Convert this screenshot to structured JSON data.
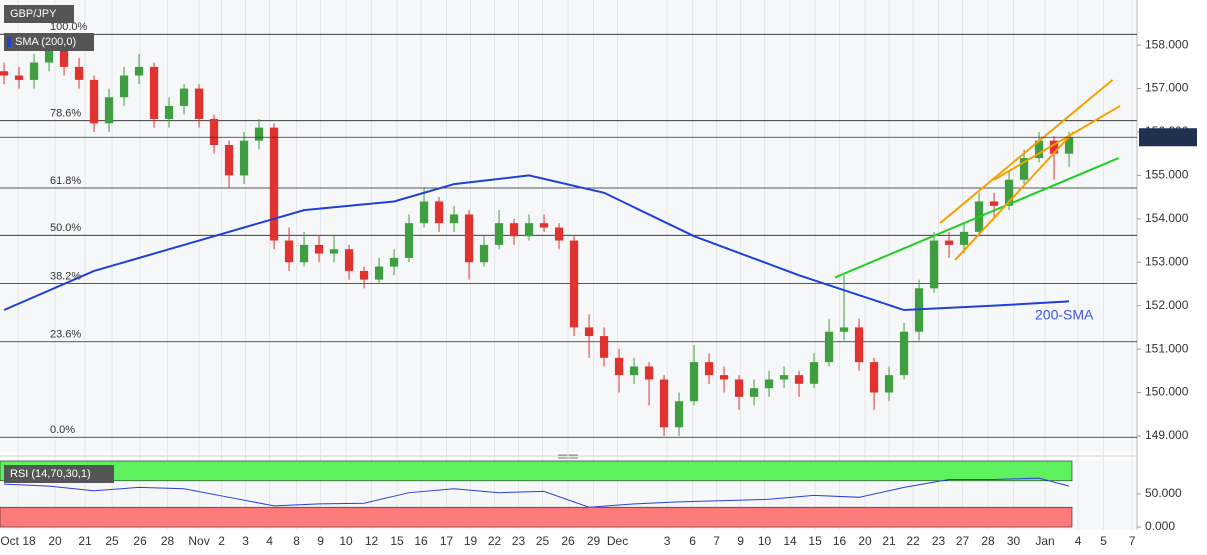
{
  "chart_data": {
    "type": "candlestick",
    "title": "GBP/JPY",
    "indicator": "SMA (200,0)",
    "up_color": "#3f9e3f",
    "down_color": "#e0332f",
    "candles": [
      [
        157.4,
        157.6,
        157.1,
        157.3
      ],
      [
        157.3,
        157.5,
        157.0,
        157.2
      ],
      [
        157.2,
        157.8,
        157.0,
        157.6
      ],
      [
        157.6,
        158.1,
        157.4,
        157.9
      ],
      [
        157.9,
        158.0,
        157.3,
        157.5
      ],
      [
        157.5,
        157.7,
        157.0,
        157.2
      ],
      [
        157.2,
        157.3,
        156.0,
        156.2
      ],
      [
        156.2,
        157.0,
        156.0,
        156.8
      ],
      [
        156.8,
        157.5,
        156.6,
        157.3
      ],
      [
        157.3,
        157.8,
        157.1,
        157.5
      ],
      [
        157.5,
        157.6,
        156.1,
        156.3
      ],
      [
        156.3,
        156.8,
        156.1,
        156.6
      ],
      [
        156.6,
        157.1,
        156.4,
        157.0
      ],
      [
        157.0,
        157.1,
        156.1,
        156.3
      ],
      [
        156.3,
        156.4,
        155.5,
        155.7
      ],
      [
        155.7,
        155.8,
        154.7,
        155.0
      ],
      [
        155.0,
        156.0,
        154.8,
        155.8
      ],
      [
        155.8,
        156.3,
        155.6,
        156.1
      ],
      [
        156.1,
        156.2,
        153.3,
        153.5
      ],
      [
        153.5,
        153.8,
        152.8,
        153.0
      ],
      [
        153.0,
        153.7,
        152.9,
        153.4
      ],
      [
        153.4,
        153.6,
        153.0,
        153.2
      ],
      [
        153.2,
        153.6,
        153.0,
        153.3
      ],
      [
        153.3,
        153.4,
        152.6,
        152.8
      ],
      [
        152.8,
        152.9,
        152.4,
        152.6
      ],
      [
        152.6,
        153.1,
        152.5,
        152.9
      ],
      [
        152.9,
        153.3,
        152.7,
        153.1
      ],
      [
        153.1,
        154.1,
        153.0,
        153.9
      ],
      [
        153.9,
        154.7,
        153.8,
        154.4
      ],
      [
        154.4,
        154.5,
        153.7,
        153.9
      ],
      [
        153.9,
        154.3,
        153.7,
        154.1
      ],
      [
        154.1,
        154.2,
        152.6,
        153.0
      ],
      [
        153.0,
        153.6,
        152.9,
        153.4
      ],
      [
        153.4,
        154.2,
        153.3,
        153.9
      ],
      [
        153.9,
        154.0,
        153.4,
        153.6
      ],
      [
        153.6,
        154.1,
        153.5,
        153.9
      ],
      [
        153.9,
        154.1,
        153.7,
        153.8
      ],
      [
        153.8,
        153.9,
        153.3,
        153.5
      ],
      [
        153.5,
        153.6,
        151.3,
        151.5
      ],
      [
        151.5,
        151.8,
        150.8,
        151.3
      ],
      [
        151.3,
        151.5,
        150.6,
        150.8
      ],
      [
        150.8,
        151.0,
        150.0,
        150.4
      ],
      [
        150.4,
        150.8,
        150.2,
        150.6
      ],
      [
        150.6,
        150.7,
        149.7,
        150.3
      ],
      [
        150.3,
        150.4,
        149.0,
        149.2
      ],
      [
        149.2,
        150.0,
        149.0,
        149.8
      ],
      [
        149.8,
        151.1,
        149.7,
        150.7
      ],
      [
        150.7,
        150.9,
        150.2,
        150.4
      ],
      [
        150.4,
        150.6,
        150.0,
        150.3
      ],
      [
        150.3,
        150.4,
        149.6,
        149.9
      ],
      [
        149.9,
        150.3,
        149.7,
        150.1
      ],
      [
        150.1,
        150.5,
        149.9,
        150.3
      ],
      [
        150.3,
        150.6,
        150.1,
        150.4
      ],
      [
        150.4,
        150.5,
        149.9,
        150.2
      ],
      [
        150.2,
        150.9,
        150.1,
        150.7
      ],
      [
        150.7,
        151.7,
        150.6,
        151.4
      ],
      [
        151.4,
        152.7,
        151.2,
        151.5
      ],
      [
        151.5,
        151.7,
        150.5,
        150.7
      ],
      [
        150.7,
        150.8,
        149.6,
        150.0
      ],
      [
        150.0,
        150.6,
        149.8,
        150.4
      ],
      [
        150.4,
        151.6,
        150.3,
        151.4
      ],
      [
        151.4,
        152.6,
        151.2,
        152.4
      ],
      [
        152.4,
        153.7,
        152.3,
        153.5
      ],
      [
        153.5,
        153.7,
        153.1,
        153.4
      ],
      [
        153.4,
        153.9,
        153.2,
        153.7
      ],
      [
        153.7,
        154.6,
        153.6,
        154.4
      ],
      [
        154.4,
        154.6,
        154.0,
        154.3
      ],
      [
        154.3,
        155.1,
        154.2,
        154.9
      ],
      [
        154.9,
        155.6,
        154.8,
        155.4
      ],
      [
        155.4,
        156.0,
        155.3,
        155.8
      ],
      [
        155.8,
        155.9,
        154.9,
        155.5
      ],
      [
        155.5,
        156.0,
        155.2,
        155.879
      ]
    ],
    "xlim": [
      -0.27,
      75.53
    ],
    "xticks": [
      {
        "value": 0.93,
        "label": "Oct 18"
      },
      {
        "value": 3.4,
        "label": "20"
      },
      {
        "value": 5.4,
        "label": "21"
      },
      {
        "value": 7.2,
        "label": "25"
      },
      {
        "value": 9.07,
        "label": "26"
      },
      {
        "value": 10.9,
        "label": "28"
      },
      {
        "value": 13.0,
        "label": "Nov"
      },
      {
        "value": 14.5,
        "label": "2"
      },
      {
        "value": 16.1,
        "label": "3"
      },
      {
        "value": 17.7,
        "label": "4"
      },
      {
        "value": 19.5,
        "label": "8"
      },
      {
        "value": 21.1,
        "label": "9"
      },
      {
        "value": 22.8,
        "label": "10"
      },
      {
        "value": 24.5,
        "label": "12"
      },
      {
        "value": 26.2,
        "label": "15"
      },
      {
        "value": 27.8,
        "label": "16"
      },
      {
        "value": 29.5,
        "label": "17"
      },
      {
        "value": 31.1,
        "label": "19"
      },
      {
        "value": 32.7,
        "label": "22"
      },
      {
        "value": 34.3,
        "label": "23"
      },
      {
        "value": 35.9,
        "label": "25"
      },
      {
        "value": 37.6,
        "label": "26"
      },
      {
        "value": 39.3,
        "label": "29"
      },
      {
        "value": 40.9,
        "label": "Dec"
      },
      {
        "value": 44.2,
        "label": "3"
      },
      {
        "value": 45.9,
        "label": "6"
      },
      {
        "value": 47.5,
        "label": "7"
      },
      {
        "value": 49.1,
        "label": "9"
      },
      {
        "value": 50.7,
        "label": "10"
      },
      {
        "value": 52.4,
        "label": "14"
      },
      {
        "value": 54.07,
        "label": "15"
      },
      {
        "value": 55.7,
        "label": "16"
      },
      {
        "value": 57.4,
        "label": "20"
      },
      {
        "value": 59.0,
        "label": "21"
      },
      {
        "value": 60.6,
        "label": "22"
      },
      {
        "value": 62.3,
        "label": "23"
      },
      {
        "value": 63.9,
        "label": "27"
      },
      {
        "value": 65.6,
        "label": "28"
      },
      {
        "value": 67.3,
        "label": "30"
      },
      {
        "value": 69.4,
        "label": "Jan"
      },
      {
        "value": 71.6,
        "label": "4"
      },
      {
        "value": 73.3,
        "label": "5"
      },
      {
        "value": 75.2,
        "label": "7"
      }
    ],
    "ylim": [
      148.63,
      159.04
    ],
    "yticks": [
      {
        "value": 149,
        "label": "149.000"
      },
      {
        "value": 150,
        "label": "150.000"
      },
      {
        "value": 151,
        "label": "151.000"
      },
      {
        "value": 152,
        "label": "152.000"
      },
      {
        "value": 153,
        "label": "153.000"
      },
      {
        "value": 154,
        "label": "154.000"
      },
      {
        "value": 155,
        "label": "155.000"
      },
      {
        "value": 156,
        "label": "156.000"
      },
      {
        "value": 157,
        "label": "157.000"
      },
      {
        "value": 158,
        "label": "158.000"
      }
    ],
    "last_price": 155.879,
    "sma": {
      "name": "200-SMA",
      "color": "#1f3fd6",
      "x": [
        0,
        6,
        13,
        20,
        26,
        30,
        35,
        40,
        46,
        53,
        60,
        66,
        71
      ],
      "values": [
        151.9,
        152.8,
        153.5,
        154.2,
        154.4,
        154.8,
        155.0,
        154.6,
        153.6,
        152.7,
        151.9,
        152.0,
        152.1
      ]
    },
    "fib": [
      {
        "label": "100.0%",
        "value": 158.25
      },
      {
        "label": "78.6%",
        "value": 156.26
      },
      {
        "label": "61.8%",
        "value": 154.71
      },
      {
        "label": "50.0%",
        "value": 153.62
      },
      {
        "label": "38.2%",
        "value": 152.51
      },
      {
        "label": "23.6%",
        "value": 151.17
      },
      {
        "label": "0.0%",
        "value": 148.97
      }
    ],
    "trendlines": [
      {
        "color": "#22cc22",
        "x": [
          55.4,
          74.3
        ],
        "values": [
          152.65,
          155.4
        ]
      },
      {
        "color": "#f5a000",
        "x": [
          62.4,
          73.9
        ],
        "values": [
          153.9,
          157.2
        ]
      },
      {
        "color": "#f5a000",
        "x": [
          66,
          74.4
        ],
        "values": [
          154.9,
          156.6
        ]
      },
      {
        "color": "#f5a000",
        "x": [
          63.4,
          71.3
        ],
        "values": [
          153.05,
          156.0
        ]
      }
    ],
    "rsi": {
      "label": "RSI (14,70,30,1)",
      "color": "#2b3fd6",
      "ylim": [
        -4.5,
        101.5
      ],
      "yticks": [
        {
          "value": 50,
          "label": "50.000"
        },
        {
          "value": 0,
          "label": "0.000"
        }
      ],
      "overbought": [
        70,
        100
      ],
      "oversold": [
        0,
        30
      ],
      "x": [
        0,
        3,
        6,
        9,
        12,
        15,
        18,
        21,
        24,
        27,
        30,
        33,
        36,
        39,
        42,
        45,
        48,
        51,
        54,
        57,
        60,
        63,
        66,
        69,
        71
      ],
      "values": [
        65,
        62,
        55,
        60,
        58,
        45,
        32,
        35,
        36,
        52,
        58,
        52,
        54,
        30,
        35,
        38,
        40,
        42,
        48,
        45,
        60,
        72,
        72,
        74,
        62
      ]
    }
  }
}
